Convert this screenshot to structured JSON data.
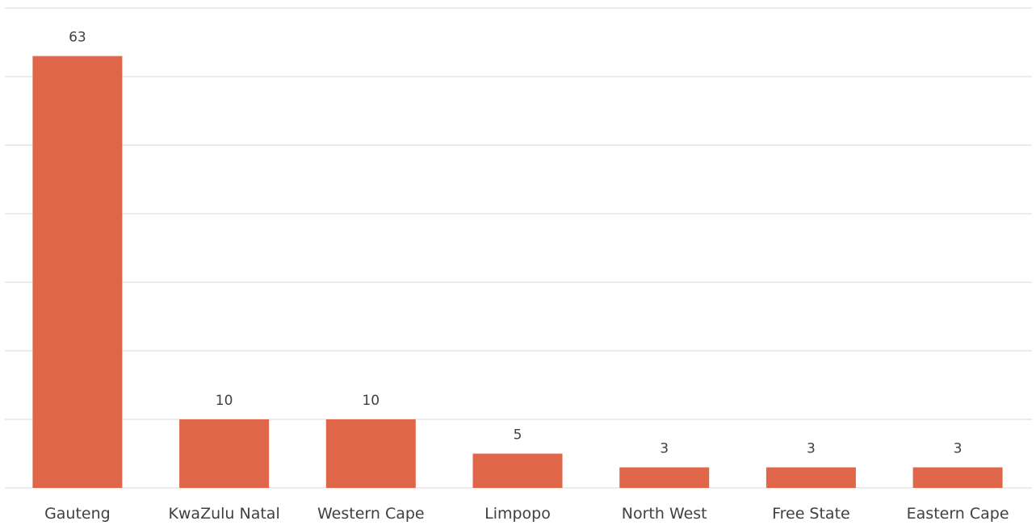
{
  "chart_data": {
    "type": "bar",
    "categories": [
      "Gauteng",
      "KwaZulu Natal",
      "Western Cape",
      "Limpopo",
      "North West",
      "Free State",
      "Eastern Cape"
    ],
    "values": [
      63,
      10,
      10,
      5,
      3,
      3,
      3
    ],
    "title": "",
    "xlabel": "",
    "ylabel": "",
    "ylim": [
      0,
      70
    ],
    "grid": true,
    "legend": "none",
    "data_labels": true,
    "bar_color": "#E0664A"
  }
}
